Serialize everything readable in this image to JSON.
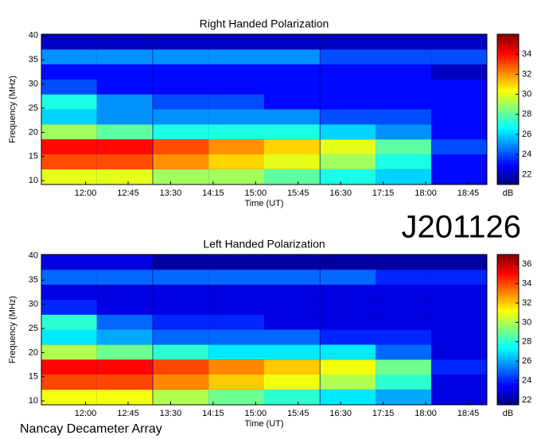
{
  "header": {
    "station": "J201126",
    "footer": "Nancay Decameter Array"
  },
  "chart_data": [
    {
      "type": "heatmap",
      "title": "Right Handed Polarization",
      "x_label": "Time (UT)",
      "y_label": "Frequency (MHz)",
      "colorbar_label": "dB",
      "colormap": "jet",
      "x": [
        11.71,
        12.69,
        13.68,
        14.66,
        15.64,
        16.63,
        17.61,
        18.59
      ],
      "y": [
        10.8,
        13.9,
        17.0,
        20.1,
        23.2,
        26.3,
        29.4,
        32.5,
        35.6,
        38.7
      ],
      "z": [
        [
          30,
          30,
          29,
          29,
          28,
          27,
          26,
          23
        ],
        [
          33,
          33,
          32,
          31,
          30,
          29,
          27,
          23
        ],
        [
          34,
          34,
          33,
          32,
          31,
          30,
          28,
          24
        ],
        [
          29,
          28,
          27,
          27,
          27,
          26,
          25,
          23
        ],
        [
          26,
          25,
          25,
          25,
          25,
          24,
          24,
          23
        ],
        [
          27,
          25,
          24,
          24,
          23,
          23,
          23,
          23
        ],
        [
          24,
          23,
          23,
          23,
          23,
          23,
          23,
          23
        ],
        [
          23,
          23,
          23,
          23,
          23,
          23,
          23,
          22
        ],
        [
          25,
          25,
          25,
          25,
          25,
          24,
          24,
          24
        ],
        [
          22,
          22,
          22,
          22,
          22,
          22,
          22,
          22
        ]
      ],
      "xlim": [
        11.22,
        19.08
      ],
      "ylim": [
        9.2,
        40.3
      ],
      "clim": [
        21,
        36
      ],
      "xticks": [
        {
          "value": 12,
          "label": "12:00"
        },
        {
          "value": 12.75,
          "label": "12:45"
        },
        {
          "value": 13.5,
          "label": "13:30"
        },
        {
          "value": 14.25,
          "label": "14:15"
        },
        {
          "value": 15,
          "label": "15:00"
        },
        {
          "value": 15.75,
          "label": "15:45"
        },
        {
          "value": 16.5,
          "label": "16:30"
        },
        {
          "value": 17.25,
          "label": "17:15"
        },
        {
          "value": 18,
          "label": "18:00"
        },
        {
          "value": 18.75,
          "label": "18:45"
        }
      ],
      "yticks": [
        10,
        15,
        20,
        25,
        30,
        35,
        40
      ],
      "cticks": [
        22,
        24,
        26,
        28,
        30,
        32,
        34
      ]
    },
    {
      "type": "heatmap",
      "title": "Left Handed Polarization",
      "x_label": "Time (UT)",
      "y_label": "Frequency (MHz)",
      "colorbar_label": "dB",
      "colormap": "jet",
      "x": [
        11.71,
        12.69,
        13.68,
        14.66,
        15.64,
        16.63,
        17.61,
        18.59
      ],
      "y": [
        10.8,
        13.9,
        17.0,
        20.1,
        23.2,
        26.3,
        29.4,
        32.5,
        35.6,
        38.7
      ],
      "z": [
        [
          31,
          31,
          30,
          29,
          28,
          27,
          26,
          23
        ],
        [
          34,
          34,
          33,
          32,
          31,
          30,
          28,
          23
        ],
        [
          35,
          35,
          34,
          33,
          32,
          31,
          29,
          24
        ],
        [
          30,
          29,
          28,
          27,
          27,
          27,
          25,
          23
        ],
        [
          27,
          26,
          25,
          25,
          25,
          24,
          24,
          23
        ],
        [
          28,
          25,
          24,
          24,
          23,
          23,
          23,
          23
        ],
        [
          24,
          23,
          23,
          23,
          23,
          23,
          23,
          23
        ],
        [
          23,
          23,
          23,
          23,
          23,
          23,
          23,
          23
        ],
        [
          25,
          25,
          25,
          25,
          25,
          25,
          24,
          24
        ],
        [
          23,
          23,
          22,
          22,
          22,
          22,
          22,
          22
        ]
      ],
      "xlim": [
        11.22,
        19.08
      ],
      "ylim": [
        9.2,
        40.3
      ],
      "clim": [
        21.5,
        37
      ],
      "xticks": [
        {
          "value": 12,
          "label": "12:00"
        },
        {
          "value": 12.75,
          "label": "12:45"
        },
        {
          "value": 13.5,
          "label": "13:30"
        },
        {
          "value": 14.25,
          "label": "14:15"
        },
        {
          "value": 15,
          "label": "15:00"
        },
        {
          "value": 15.75,
          "label": "15:45"
        },
        {
          "value": 16.5,
          "label": "16:30"
        },
        {
          "value": 17.25,
          "label": "17:15"
        },
        {
          "value": 18,
          "label": "18:00"
        },
        {
          "value": 18.75,
          "label": "18:45"
        }
      ],
      "yticks": [
        10,
        15,
        20,
        25,
        30,
        35,
        40
      ],
      "cticks": [
        22,
        24,
        26,
        28,
        30,
        32,
        34,
        36
      ]
    }
  ]
}
